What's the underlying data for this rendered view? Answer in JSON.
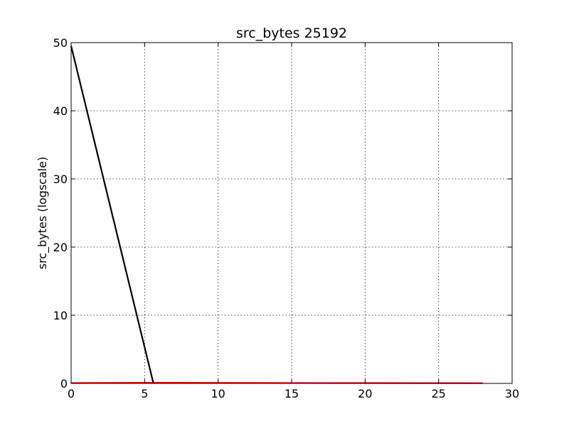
{
  "chart_data": {
    "type": "line",
    "title": "src_bytes 25192",
    "xlabel": "",
    "ylabel": "src_bytes (logscale)",
    "xlim": [
      0,
      30
    ],
    "ylim": [
      0,
      50
    ],
    "xticks": [
      0,
      5,
      10,
      15,
      20,
      25,
      30
    ],
    "yticks": [
      0,
      10,
      20,
      30,
      40,
      50
    ],
    "grid": true,
    "legend": "none",
    "series": [
      {
        "color": "#000000",
        "x": [
          0,
          5.6
        ],
        "y": [
          49.5,
          0
        ]
      },
      {
        "color": "#ff0000",
        "x": [
          0,
          5,
          10,
          15,
          20,
          25,
          28
        ],
        "y": [
          0.05,
          0.1,
          0.08,
          0.06,
          0.05,
          0.04,
          0.03
        ]
      }
    ]
  }
}
